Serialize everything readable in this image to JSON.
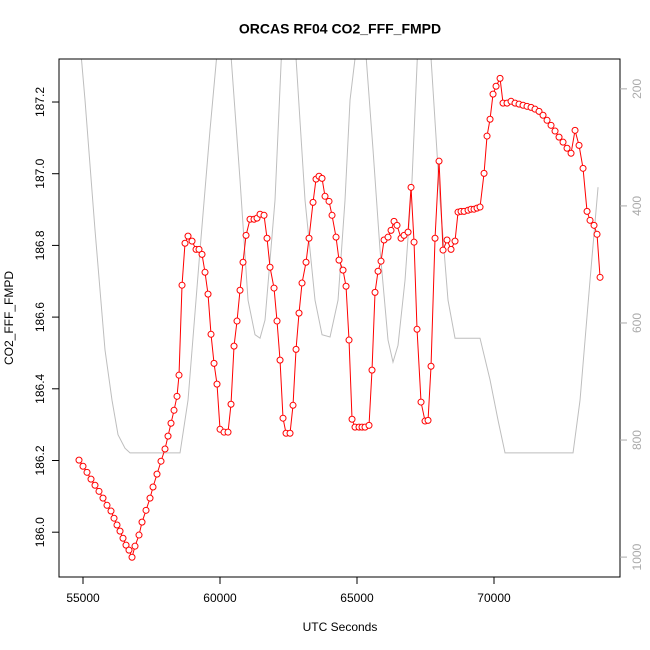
{
  "chart_data": {
    "type": "line",
    "title": "ORCAS RF04 CO2_FFF_FMPD",
    "x_label": "UTC Seconds",
    "y_label": "CO2_FFF_FMPD",
    "xlim": [
      54124,
      74599
    ],
    "ylim": [
      185.875,
      187.32
    ],
    "y2lim": [
      1034,
      149
    ],
    "xticks": [
      55000,
      60000,
      65000,
      70000
    ],
    "yticks": [
      {
        "value": 186,
        "label": "186.0"
      },
      186.2,
      186.4,
      186.6,
      186.8,
      {
        "value": 187,
        "label": "187.0"
      },
      187.2
    ],
    "y2ticks": [
      200,
      400,
      600,
      800,
      1000
    ],
    "series": [
      {
        "color": "#ff0000",
        "markers": true,
        "x": [
          54854,
          55000,
          55146,
          55292,
          55438,
          55584,
          55730,
          55876,
          56022,
          56132,
          56241,
          56351,
          56460,
          56570,
          56679,
          56789,
          56898,
          57044,
          57154,
          57300,
          57446,
          57555,
          57701,
          57847,
          57993,
          58103,
          58212,
          58322,
          58431,
          58504,
          58614,
          58723,
          58833,
          58979,
          59125,
          59234,
          59344,
          59453,
          59563,
          59672,
          59782,
          59891,
          60001,
          60147,
          60293,
          60402,
          60512,
          60621,
          60731,
          60840,
          60950,
          61096,
          61242,
          61351,
          61461,
          61607,
          61716,
          61826,
          61972,
          62081,
          62191,
          62300,
          62410,
          62556,
          62665,
          62775,
          62884,
          62994,
          63140,
          63249,
          63395,
          63505,
          63614,
          63724,
          63833,
          63979,
          64089,
          64235,
          64344,
          64490,
          64600,
          64709,
          64819,
          64928,
          65074,
          65184,
          65293,
          65439,
          65548,
          65658,
          65768,
          65877,
          65987,
          66133,
          66242,
          66352,
          66461,
          66607,
          66717,
          66863,
          66972,
          67082,
          67191,
          67337,
          67483,
          67593,
          67702,
          67848,
          67994,
          68140,
          68286,
          68432,
          68578,
          68688,
          68797,
          68907,
          69053,
          69162,
          69272,
          69381,
          69491,
          69637,
          69746,
          69856,
          69965,
          70075,
          70221,
          70330,
          70476,
          70622,
          70768,
          70914,
          71060,
          71206,
          71352,
          71498,
          71644,
          71790,
          71936,
          72082,
          72228,
          72374,
          72520,
          72666,
          72812,
          72958,
          73104,
          73250,
          73396,
          73505,
          73651,
          73761,
          73871
        ],
        "values": [
          186.201,
          186.184,
          186.167,
          186.148,
          186.131,
          186.114,
          186.095,
          186.075,
          186.059,
          186.039,
          186.02,
          186.003,
          185.983,
          185.964,
          185.95,
          185.93,
          185.961,
          185.992,
          186.028,
          186.061,
          186.095,
          186.126,
          186.162,
          186.198,
          186.232,
          186.268,
          186.304,
          186.34,
          186.379,
          186.438,
          186.689,
          186.806,
          186.826,
          186.812,
          186.789,
          186.789,
          186.775,
          186.725,
          186.664,
          186.552,
          186.471,
          186.413,
          186.287,
          186.279,
          186.279,
          186.357,
          186.519,
          186.589,
          186.675,
          186.753,
          186.828,
          186.873,
          186.873,
          186.876,
          186.887,
          186.884,
          186.82,
          186.739,
          186.681,
          186.589,
          186.48,
          186.318,
          186.276,
          186.276,
          186.354,
          186.51,
          186.611,
          186.695,
          186.753,
          186.82,
          186.92,
          186.985,
          186.993,
          186.987,
          186.937,
          186.923,
          186.884,
          186.823,
          186.759,
          186.731,
          186.686,
          186.536,
          186.315,
          186.293,
          186.293,
          186.293,
          186.293,
          186.298,
          186.452,
          186.669,
          186.728,
          186.756,
          186.815,
          186.823,
          186.842,
          186.867,
          186.856,
          186.82,
          186.828,
          186.837,
          186.962,
          186.809,
          186.566,
          186.363,
          186.31,
          186.312,
          186.463,
          186.82,
          187.035,
          186.787,
          186.815,
          186.789,
          186.812,
          186.893,
          186.895,
          186.895,
          186.898,
          186.901,
          186.901,
          186.904,
          186.907,
          187.001,
          187.105,
          187.152,
          187.222,
          187.244,
          187.266,
          187.197,
          187.197,
          187.202,
          187.197,
          187.194,
          187.191,
          187.188,
          187.185,
          187.18,
          187.174,
          187.163,
          187.149,
          187.135,
          187.119,
          187.102,
          187.088,
          187.071,
          187.057,
          187.121,
          187.079,
          187.015,
          186.895,
          186.87,
          186.856,
          186.831,
          186.711
        ]
      },
      {
        "color": "#bebebe",
        "axis": "y2",
        "markers": false,
        "x": [
          54890,
          55073,
          55438,
          55803,
          56059,
          56278,
          56533,
          56716,
          58541,
          58833,
          59271,
          59636,
          59928,
          60366,
          60731,
          61023,
          61278,
          61461,
          61643,
          62008,
          62264,
          62738,
          63103,
          63468,
          63724,
          64016,
          64308,
          64563,
          64746,
          65001,
          65293,
          65585,
          65840,
          66132,
          66314,
          66497,
          66753,
          67008,
          67227,
          67665,
          68030,
          68322,
          68578,
          69490,
          69855,
          70147,
          70403,
          72885,
          73140,
          73505,
          73798
        ],
        "values": [
          120,
          219,
          441,
          646,
          732,
          791,
          814,
          822,
          822,
          732,
          475,
          270,
          120,
          120,
          356,
          561,
          620,
          626,
          595,
          390,
          120,
          120,
          390,
          561,
          620,
          624,
          561,
          390,
          219,
          120,
          120,
          304,
          475,
          629,
          667,
          638,
          527,
          356,
          120,
          120,
          390,
          561,
          626,
          626,
          697,
          766,
          822,
          822,
          732,
          527,
          368
        ]
      }
    ]
  }
}
